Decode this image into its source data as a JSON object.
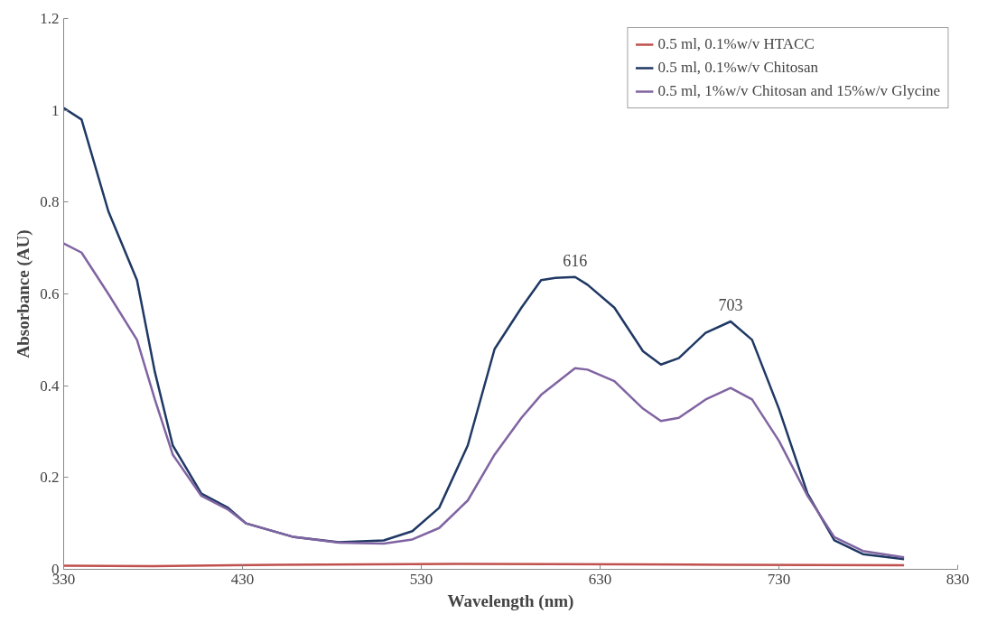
{
  "chart_data": {
    "type": "line",
    "xlabel": "Wavelength (nm)",
    "ylabel": "Absorbance (AU)",
    "xlim": [
      330,
      830
    ],
    "xticks": [
      330,
      430,
      530,
      630,
      730,
      830
    ],
    "ylim": [
      0,
      1.2
    ],
    "yticks": [
      0,
      0.2,
      0.4,
      0.6,
      0.8,
      {
        "value": 1,
        "label": "1"
      },
      1.2
    ],
    "grid": false,
    "legend": "top right",
    "marker": "none",
    "line_style": "solid",
    "annotations": [
      {
        "text": "616",
        "x": 616,
        "y": 0.637
      },
      {
        "text": "703",
        "x": 703,
        "y": 0.54
      }
    ],
    "series": [
      {
        "name": "0.5 ml, 0.1%w/v HTACC",
        "color": "#c0504d",
        "x": [
          330,
          380,
          450,
          550,
          650,
          700,
          800
        ],
        "values": [
          0.008,
          0.007,
          0.01,
          0.012,
          0.011,
          0.01,
          0.009
        ]
      },
      {
        "name": "0.5 ml, 0.1%w/v Chitosan",
        "color": "#1f3864",
        "x": [
          330,
          340,
          355,
          371,
          381,
          391,
          407,
          422,
          432,
          458,
          484,
          509,
          525,
          540,
          556,
          571,
          586,
          597,
          605,
          616,
          623,
          638,
          654,
          664,
          674,
          689,
          703,
          715,
          730,
          746,
          761,
          777,
          800
        ],
        "values": [
          1.005,
          0.98,
          0.78,
          0.63,
          0.43,
          0.27,
          0.165,
          0.134,
          0.1,
          0.071,
          0.059,
          0.063,
          0.083,
          0.134,
          0.27,
          0.48,
          0.57,
          0.63,
          0.635,
          0.637,
          0.62,
          0.57,
          0.475,
          0.446,
          0.46,
          0.515,
          0.54,
          0.5,
          0.35,
          0.165,
          0.063,
          0.033,
          0.022
        ]
      },
      {
        "name": "0.5 ml, 1%w/v Chitosan and 15%w/v Glycine",
        "color": "#8064a2",
        "x": [
          330,
          340,
          355,
          371,
          381,
          391,
          407,
          422,
          432,
          458,
          484,
          509,
          525,
          540,
          556,
          571,
          586,
          597,
          616,
          623,
          638,
          654,
          664,
          674,
          689,
          703,
          715,
          730,
          746,
          761,
          777,
          800
        ],
        "values": [
          0.71,
          0.69,
          0.6,
          0.5,
          0.37,
          0.25,
          0.16,
          0.13,
          0.1,
          0.071,
          0.058,
          0.056,
          0.065,
          0.09,
          0.15,
          0.25,
          0.33,
          0.38,
          0.438,
          0.435,
          0.41,
          0.35,
          0.323,
          0.33,
          0.37,
          0.395,
          0.37,
          0.28,
          0.16,
          0.07,
          0.04,
          0.026
        ]
      }
    ]
  }
}
